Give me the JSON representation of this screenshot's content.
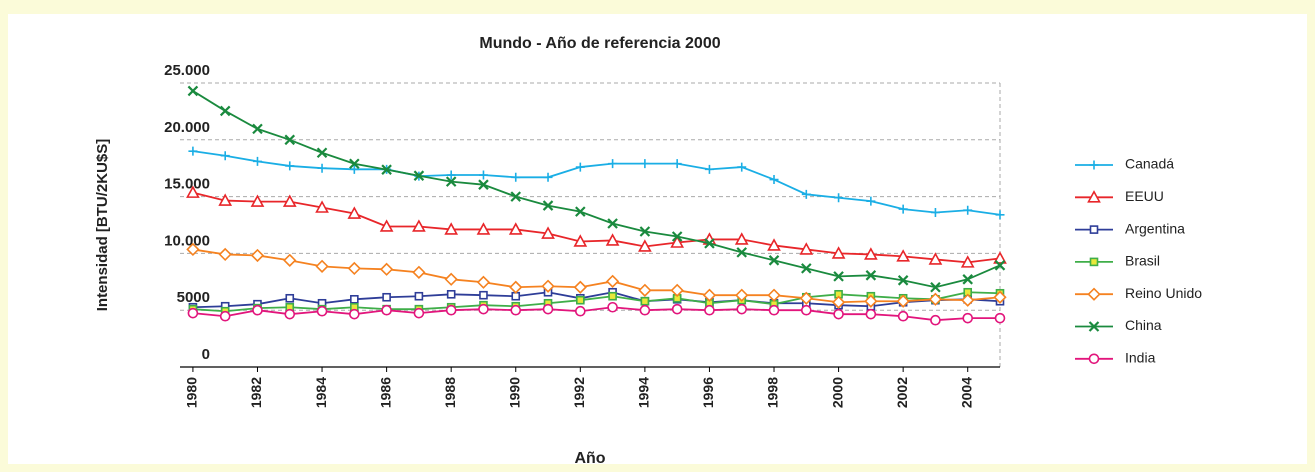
{
  "chart_data": {
    "type": "line",
    "title": "Mundo - Año de referencia 2000",
    "x_label": "Año",
    "y_label": "Intensidad [BTU/2KU$S]",
    "x": [
      1980,
      1981,
      1982,
      1983,
      1984,
      1985,
      1986,
      1987,
      1988,
      1989,
      1990,
      1991,
      1992,
      1993,
      1994,
      1995,
      1996,
      1997,
      1998,
      1999,
      2000,
      2001,
      2002,
      2003,
      2004,
      2005
    ],
    "xlim": [
      1979.6,
      2005
    ],
    "xticks": [
      1980,
      1982,
      1984,
      1986,
      1988,
      1990,
      1992,
      1994,
      1996,
      1998,
      2000,
      2002,
      2004
    ],
    "ylim": [
      0,
      25000
    ],
    "yticks": [
      0,
      5000,
      {
        "value": 10000,
        "label": "10.000"
      },
      {
        "value": 15000,
        "label": "15.000"
      },
      {
        "value": 20000,
        "label": "20.000"
      },
      {
        "value": 25000,
        "label": "25.000"
      }
    ],
    "grid": true,
    "legend": "right",
    "series": [
      {
        "name": "Canadá",
        "color": "#1aaee5",
        "marker": "plus",
        "values": [
          19000,
          18600,
          18100,
          17700,
          17500,
          17400,
          17400,
          16800,
          16900,
          16900,
          16700,
          16700,
          17600,
          17900,
          17900,
          17900,
          17400,
          17600,
          16500,
          15200,
          14900,
          14600,
          13900,
          13600,
          13800,
          13400
        ]
      },
      {
        "name": "EEUU",
        "color": "#e8262a",
        "marker": "triangle",
        "values": [
          15350,
          14650,
          14560,
          14560,
          14040,
          13510,
          12370,
          12370,
          12110,
          12110,
          12110,
          11750,
          11050,
          11140,
          10610,
          10960,
          11230,
          11230,
          10700,
          10350,
          10000,
          9910,
          9740,
          9470,
          9210,
          9560
        ]
      },
      {
        "name": "Argentina",
        "color": "#2e3d98",
        "marker": "square",
        "values": [
          5260,
          5350,
          5530,
          6050,
          5610,
          5960,
          6140,
          6230,
          6400,
          6320,
          6230,
          6580,
          6050,
          6580,
          5790,
          5960,
          5700,
          5880,
          5610,
          5610,
          5440,
          5350,
          5700,
          5880,
          5960,
          5790
        ]
      },
      {
        "name": "Brasil",
        "color": "#3fae49",
        "marker": "square-filled",
        "values": [
          5090,
          4910,
          5180,
          5260,
          5090,
          5260,
          5090,
          5090,
          5260,
          5440,
          5350,
          5610,
          5880,
          6230,
          5790,
          6050,
          5610,
          5880,
          5530,
          6140,
          6400,
          6230,
          6050,
          5960,
          6580,
          6490
        ]
      },
      {
        "name": "Reino Unido",
        "color": "#f58220",
        "marker": "diamond",
        "values": [
          10350,
          9910,
          9820,
          9390,
          8860,
          8680,
          8600,
          8330,
          7720,
          7460,
          7020,
          7110,
          7020,
          7540,
          6750,
          6750,
          6320,
          6320,
          6320,
          6050,
          5700,
          5790,
          5790,
          5960,
          5880,
          6140
        ]
      },
      {
        "name": "China",
        "color": "#1a8a3e",
        "marker": "x",
        "values": [
          24300,
          22540,
          20960,
          20000,
          18860,
          17890,
          17370,
          16840,
          16320,
          16050,
          15000,
          14210,
          13680,
          12630,
          11930,
          11490,
          10880,
          10090,
          9390,
          8680,
          7980,
          8070,
          7630,
          7020,
          7720,
          8950
        ]
      },
      {
        "name": "India",
        "color": "#e2157c",
        "marker": "circle",
        "values": [
          4740,
          4470,
          5000,
          4650,
          4910,
          4650,
          5000,
          4740,
          5000,
          5090,
          5000,
          5090,
          4910,
          5260,
          5000,
          5090,
          5000,
          5090,
          5000,
          5000,
          4650,
          4650,
          4470,
          4120,
          4300,
          4300
        ]
      }
    ]
  }
}
